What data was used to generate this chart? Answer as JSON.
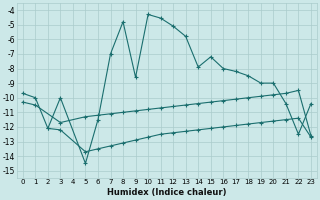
{
  "xlabel": "Humidex (Indice chaleur)",
  "bg_color": "#cce8e8",
  "grid_color": "#aacccc",
  "line_color": "#1a6e6e",
  "xlim": [
    -0.5,
    23.5
  ],
  "ylim": [
    -15.5,
    -3.5
  ],
  "xticks": [
    0,
    1,
    2,
    3,
    4,
    5,
    6,
    7,
    8,
    9,
    10,
    11,
    12,
    13,
    14,
    15,
    16,
    17,
    18,
    19,
    20,
    21,
    22,
    23
  ],
  "yticks": [
    -4,
    -5,
    -6,
    -7,
    -8,
    -9,
    -10,
    -11,
    -12,
    -13,
    -14,
    -15
  ],
  "line1_x": [
    0,
    1,
    2,
    3,
    5,
    6,
    7,
    8,
    9,
    10,
    11,
    12,
    13,
    14,
    15,
    16,
    17,
    18,
    19,
    20,
    21,
    22,
    23
  ],
  "line1_y": [
    -9.7,
    -10.0,
    -12.1,
    -10.0,
    -14.5,
    -11.5,
    -7.0,
    -4.8,
    -8.6,
    -4.3,
    -4.55,
    -5.1,
    -5.8,
    -7.9,
    -7.2,
    -8.0,
    -8.2,
    -8.5,
    -9.0,
    -9.0,
    -10.4,
    -12.5,
    -10.4
  ],
  "line2_x": [
    0,
    1,
    3,
    5,
    6,
    7,
    8,
    9,
    10,
    11,
    12,
    13,
    14,
    15,
    16,
    17,
    18,
    19,
    20,
    21,
    22,
    23
  ],
  "line2_y": [
    -10.3,
    -10.5,
    -11.7,
    -11.3,
    -11.2,
    -11.1,
    -11.0,
    -10.9,
    -10.8,
    -10.7,
    -10.6,
    -10.5,
    -10.4,
    -10.3,
    -10.2,
    -10.1,
    -10.0,
    -9.9,
    -9.8,
    -9.7,
    -9.5,
    -12.6
  ],
  "line3_x": [
    2,
    3,
    5,
    6,
    7,
    8,
    9,
    10,
    11,
    12,
    13,
    14,
    15,
    16,
    17,
    18,
    19,
    20,
    21,
    22,
    23
  ],
  "line3_y": [
    -12.1,
    -12.2,
    -13.7,
    -13.5,
    -13.3,
    -13.1,
    -12.9,
    -12.7,
    -12.5,
    -12.4,
    -12.3,
    -12.2,
    -12.1,
    -12.0,
    -11.9,
    -11.8,
    -11.7,
    -11.6,
    -11.5,
    -11.4,
    -12.7
  ]
}
